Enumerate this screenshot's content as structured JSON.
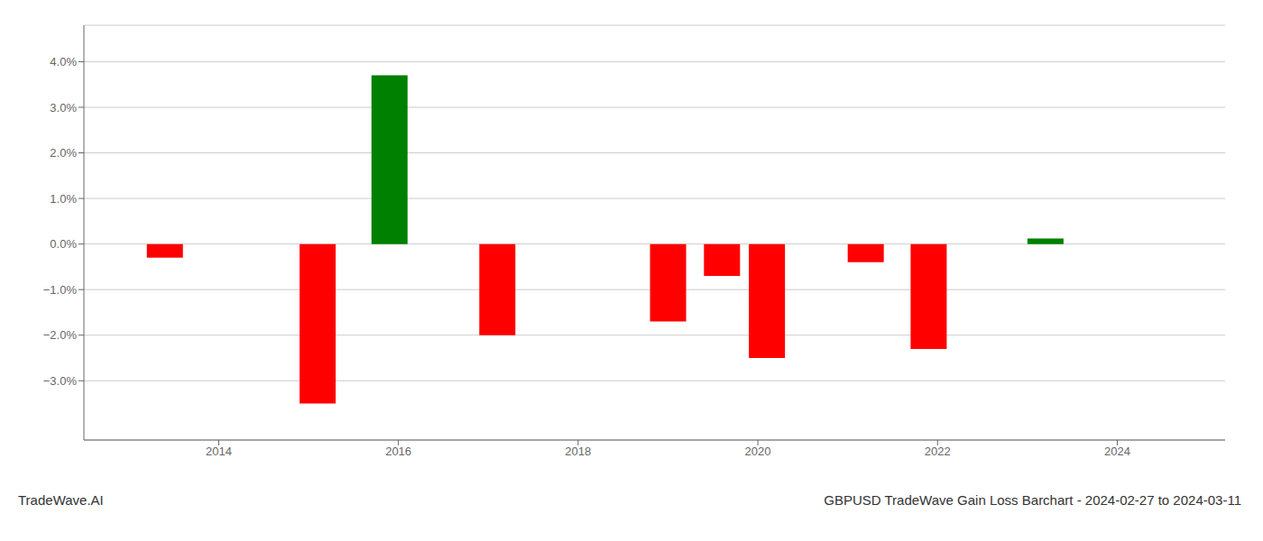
{
  "chart_data": {
    "type": "bar",
    "title": "GBPUSD TradeWave Gain Loss Barchart - 2024-02-27 to 2024-03-11",
    "annotations": [
      "TradeWave.AI"
    ],
    "x": [
      2013.4,
      2015.1,
      2015.9,
      2017.1,
      2019.0,
      2019.6,
      2020.1,
      2021.2,
      2021.9,
      2023.2
    ],
    "values": [
      -0.003,
      -0.035,
      0.037,
      -0.02,
      -0.017,
      -0.007,
      -0.025,
      -0.004,
      -0.023,
      0.0012
    ],
    "colors": [
      "#ff0000",
      "#ff0000",
      "#008000",
      "#ff0000",
      "#ff0000",
      "#ff0000",
      "#ff0000",
      "#ff0000",
      "#ff0000",
      "#008000"
    ],
    "xlim": [
      2012.5,
      2025.2
    ],
    "xticks": [
      2014,
      2016,
      2018,
      2020,
      2022,
      2024
    ],
    "ylim": [
      -0.043,
      0.048
    ],
    "yticks": [
      {
        "value": -0.03,
        "label": "−3.0%"
      },
      {
        "value": -0.02,
        "label": "−2.0%"
      },
      {
        "value": -0.01,
        "label": "−1.0%"
      },
      {
        "value": 0.0,
        "label": "0.0%"
      },
      {
        "value": 0.01,
        "label": "1.0%"
      },
      {
        "value": 0.02,
        "label": "2.0%"
      },
      {
        "value": 0.03,
        "label": "3.0%"
      },
      {
        "value": 0.04,
        "label": "4.0%"
      }
    ],
    "grid": true
  }
}
